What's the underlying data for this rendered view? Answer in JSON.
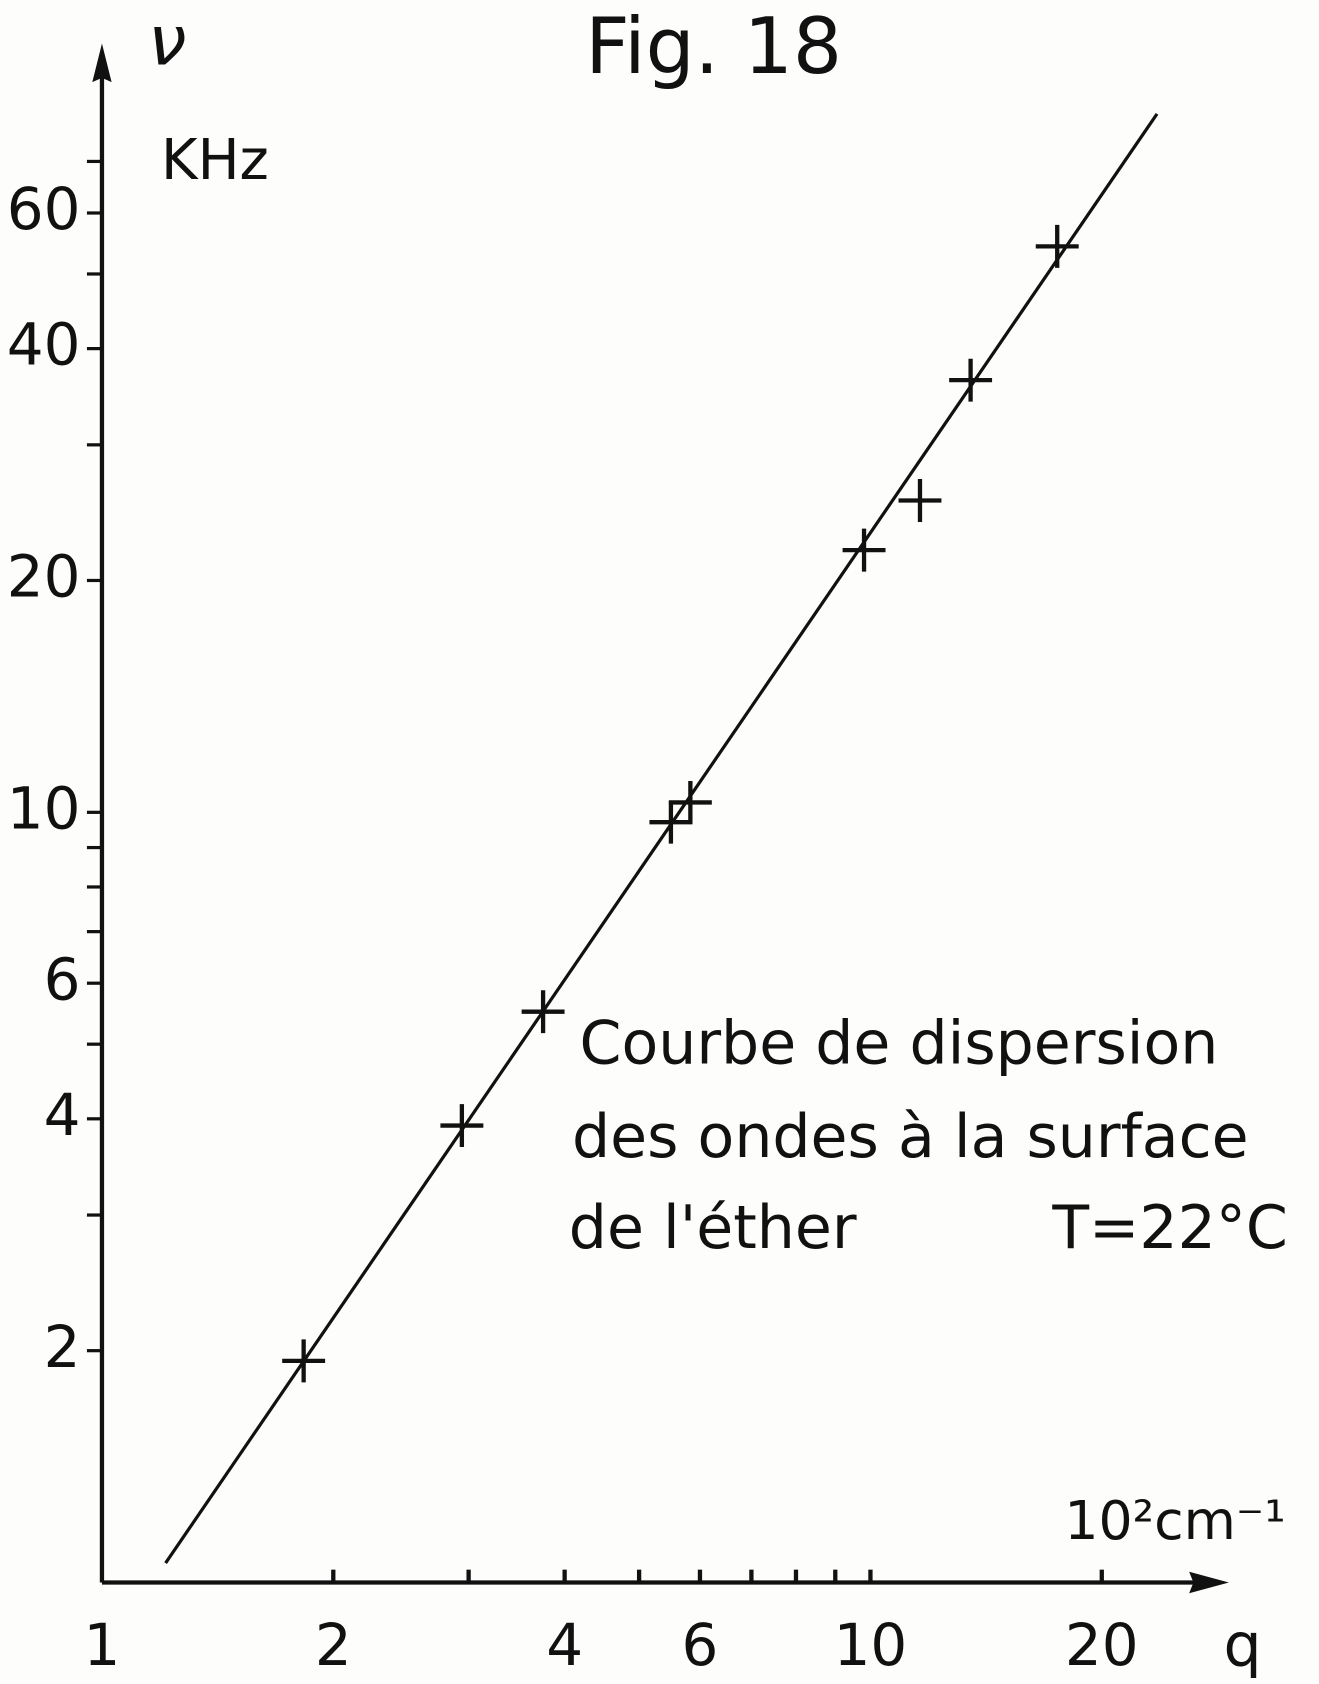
{
  "chart_data": {
    "type": "scatter",
    "title": "Fig. 18",
    "y_symbol": "ν",
    "ylabel": "KHz",
    "xlabel": "q",
    "x_unit": "10²cm⁻¹",
    "annotation": [
      "Courbe de dispersion",
      "des ondes à la surface",
      "de l'éther",
      "T=22°C"
    ],
    "xlog": true,
    "ylog": true,
    "xlim": [
      1,
      28.8
    ],
    "ylim": [
      1,
      98
    ],
    "xticks": [
      1,
      2,
      4,
      6,
      10,
      20
    ],
    "xminor": [
      3,
      5,
      7,
      8,
      9
    ],
    "yticks": [
      2,
      4,
      6,
      10,
      20,
      40,
      60
    ],
    "yminor": [
      3,
      5,
      7,
      8,
      9,
      30,
      50,
      70
    ],
    "series": [
      {
        "marker": "+",
        "color": "#111111",
        "x": [
          1.83,
          2.94,
          3.75,
          5.5,
          5.83,
          9.81,
          11.6,
          13.5,
          17.5
        ],
        "values": [
          1.94,
          3.92,
          5.51,
          9.71,
          10.3,
          21.9,
          25.4,
          36.4,
          54.3
        ]
      },
      {
        "marker": "line",
        "color": "#111111",
        "x": [
          1.21,
          23.6
        ],
        "values": [
          1.06,
          80.7
        ]
      }
    ]
  }
}
